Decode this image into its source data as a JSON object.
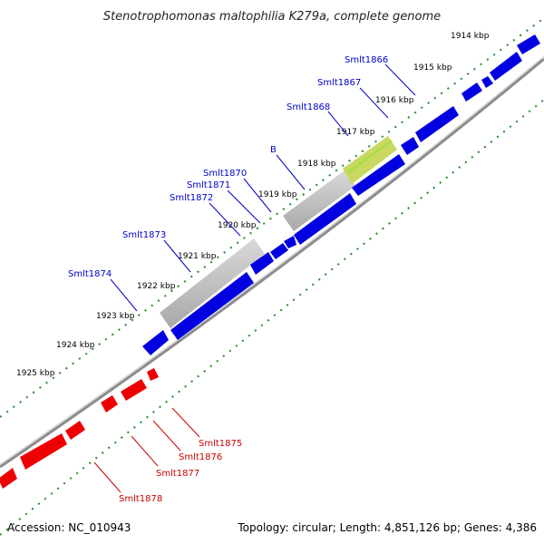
{
  "title": "Stenotrophomonas maltophilia K279a, complete genome",
  "footer": {
    "accession": "Accession: NC_010943",
    "topology": "Topology: circular; Length: 4,851,126 bp; Genes: 4,386"
  },
  "colors": {
    "forward_gene": "#0000e0",
    "reverse_gene": "#ee0000",
    "highlight_region": "#c0c0c0",
    "selected_feature": "#a8d040",
    "backbone": "#808080",
    "tick_dots": "#228b22",
    "top_label": "#0000cc",
    "bottom_label": "#cc0000"
  },
  "kbp_labels": [
    "1914 kbp",
    "1915 kbp",
    "1916 kbp",
    "1917 kbp",
    "1918 kbp",
    "1919 kbp",
    "1920 kbp",
    "1921 kbp",
    "1922 kbp",
    "1923 kbp",
    "1924 kbp",
    "1925 kbp"
  ],
  "genes_top": [
    "Smlt1866",
    "Smlt1867",
    "Smlt1868",
    "B",
    "Smlt1870",
    "Smlt1871",
    "Smlt1872",
    "Smlt1873",
    "Smlt1874"
  ],
  "genes_bottom": [
    "Smlt1875",
    "Smlt1876",
    "Smlt1877",
    "Smlt1878"
  ]
}
